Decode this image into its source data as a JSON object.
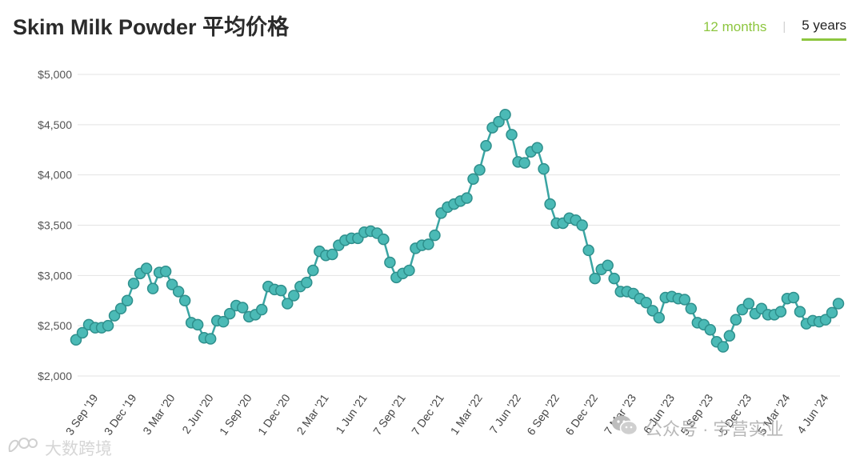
{
  "header": {
    "title": "Skim Milk Powder 平均价格",
    "range_options": [
      {
        "label": "12 months",
        "active": false
      },
      {
        "label": "5 years",
        "active": true
      }
    ],
    "separator": "|"
  },
  "watermarks": {
    "right_text": "公众号 · 宇营实业",
    "right_icon": "wechat-icon",
    "left_text": "大数跨境",
    "left_icon": "brand-logo-icon"
  },
  "colors": {
    "series": "#3aa5a3",
    "marker_fill": "#4bbab6",
    "accent": "#8dc63f",
    "grid": "#e3e3e3"
  },
  "chart_data": {
    "type": "line",
    "title": "Skim Milk Powder 平均价格",
    "xlabel": "",
    "ylabel": "",
    "ylim": [
      2000,
      5000
    ],
    "yticks": [
      "$2,000",
      "$2,500",
      "$3,000",
      "$3,500",
      "$4,000",
      "$4,500",
      "$5,000"
    ],
    "grid": "horizontal",
    "legend": "none",
    "xtick_labels": [
      "3 Sep '19",
      "3 Dec '19",
      "3 Mar '20",
      "2 Jun '20",
      "1 Sep '20",
      "1 Dec '20",
      "2 Mar '21",
      "1 Jun '21",
      "7 Sep '21",
      "7 Dec '21",
      "1 Mar '22",
      "7 Jun '22",
      "6 Sep '22",
      "6 Dec '22",
      "7 Mar '23",
      "6 Jun '23",
      "5 Sep '23",
      "5 Dec '23",
      "5 Mar '24",
      "4 Jun '24"
    ],
    "xtick_positions": [
      2,
      8,
      14,
      20,
      26,
      32,
      38,
      44,
      50,
      56,
      62,
      68,
      74,
      80,
      86,
      92,
      98,
      104,
      110,
      116
    ],
    "series": [
      {
        "values": [
          2360,
          2430,
          2510,
          2480,
          2480,
          2500,
          2600,
          2670,
          2750,
          2920,
          3020,
          3070,
          2870,
          3030,
          3040,
          2910,
          2840,
          2750,
          2530,
          2510,
          2380,
          2370,
          2550,
          2540,
          2620,
          2700,
          2680,
          2590,
          2610,
          2660,
          2890,
          2860,
          2850,
          2720,
          2800,
          2890,
          2930,
          3050,
          3240,
          3200,
          3210,
          3300,
          3350,
          3370,
          3370,
          3430,
          3440,
          3420,
          3360,
          3130,
          2980,
          3020,
          3050,
          3270,
          3300,
          3310,
          3400,
          3620,
          3680,
          3710,
          3740,
          3770,
          3960,
          4050,
          4290,
          4470,
          4530,
          4600,
          4400,
          4130,
          4120,
          4230,
          4270,
          4060,
          3710,
          3520,
          3520,
          3570,
          3550,
          3500,
          3250,
          2970,
          3060,
          3100,
          2970,
          2840,
          2840,
          2820,
          2770,
          2730,
          2650,
          2580,
          2780,
          2790,
          2770,
          2760,
          2670,
          2530,
          2510,
          2460,
          2340,
          2290,
          2400,
          2560,
          2660,
          2720,
          2620,
          2670,
          2610,
          2610,
          2640,
          2770,
          2780,
          2640,
          2520,
          2550,
          2540,
          2560,
          2630,
          2720
        ]
      }
    ]
  }
}
